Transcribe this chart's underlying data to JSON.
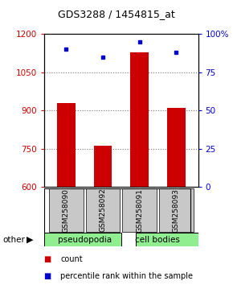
{
  "title": "GDS3288 / 1454815_at",
  "samples": [
    "GSM258090",
    "GSM258092",
    "GSM258091",
    "GSM258093"
  ],
  "counts": [
    930,
    760,
    1130,
    910
  ],
  "percentiles": [
    90,
    85,
    95,
    88
  ],
  "ylim_left": [
    600,
    1200
  ],
  "ylim_right": [
    0,
    100
  ],
  "yticks_left": [
    600,
    750,
    900,
    1050,
    1200
  ],
  "yticks_right": [
    0,
    25,
    50,
    75,
    100
  ],
  "ytick_right_labels": [
    "0",
    "25",
    "50",
    "75",
    "100%"
  ],
  "bar_color": "#CC0000",
  "dot_color": "#0000CC",
  "bar_width": 0.5,
  "legend_count_color": "#CC0000",
  "legend_pct_color": "#0000CC",
  "background_color": "#ffffff",
  "plot_bg": "#ffffff",
  "pseudopodia_color": "#90ee90",
  "cell_bodies_color": "#90ee90",
  "dotted_line_color": "#777777",
  "label_bg": "#c8c8c8"
}
